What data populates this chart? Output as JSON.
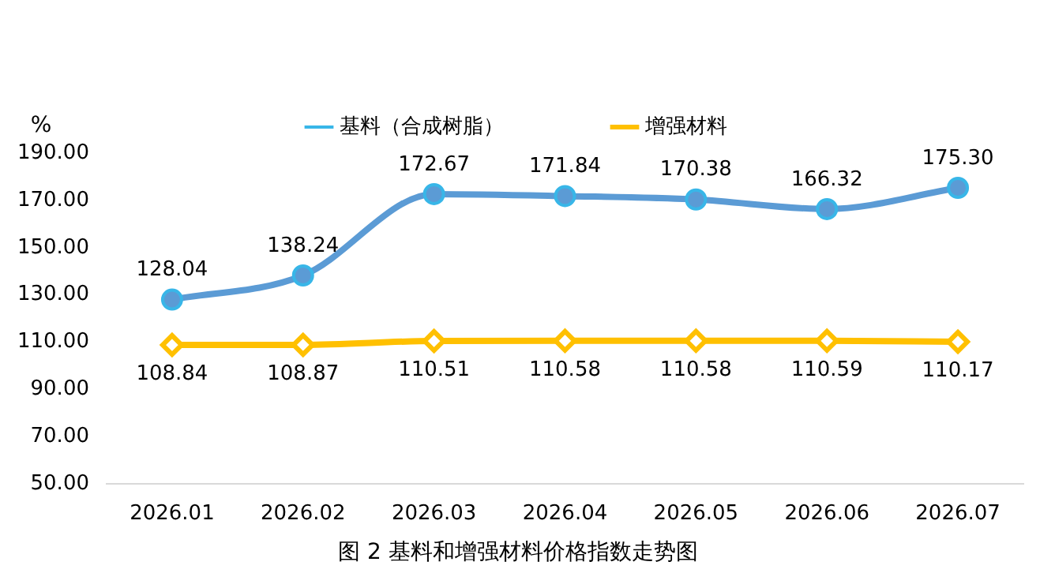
{
  "chart_data": {
    "type": "line",
    "title": "图 2 基料和增强材料价格指数走势图",
    "ylabel": "%",
    "categories": [
      "2026.01",
      "2026.02",
      "2026.03",
      "2026.04",
      "2026.05",
      "2026.06",
      "2026.07"
    ],
    "series": [
      {
        "name": "基料（合成树脂）",
        "color": "#5b9bd5",
        "marker": "circle",
        "values": [
          128.04,
          138.24,
          172.67,
          171.84,
          170.38,
          166.32,
          175.3
        ],
        "value_labels": [
          "128.04",
          "138.24",
          "172.67",
          "171.84",
          "170.38",
          "166.32",
          "175.30"
        ]
      },
      {
        "name": "增强材料",
        "color": "#ffc000",
        "marker": "diamond",
        "values": [
          108.84,
          108.87,
          110.51,
          110.58,
          110.58,
          110.59,
          110.17
        ],
        "value_labels": [
          "108.84",
          "108.87",
          "110.51",
          "110.58",
          "110.58",
          "110.59",
          "110.17"
        ]
      }
    ],
    "ylim": [
      50,
      190
    ],
    "yticks": [
      {
        "value": 50,
        "label": "50.00"
      },
      {
        "value": 70,
        "label": "70.00"
      },
      {
        "value": 90,
        "label": "90.00"
      },
      {
        "value": 110,
        "label": "110.00"
      },
      {
        "value": 130,
        "label": "130.00"
      },
      {
        "value": 150,
        "label": "150.00"
      },
      {
        "value": 170,
        "label": "170.00"
      },
      {
        "value": 190,
        "label": "190.00"
      }
    ],
    "legend": "top",
    "grid": false,
    "line_style": "solid"
  }
}
